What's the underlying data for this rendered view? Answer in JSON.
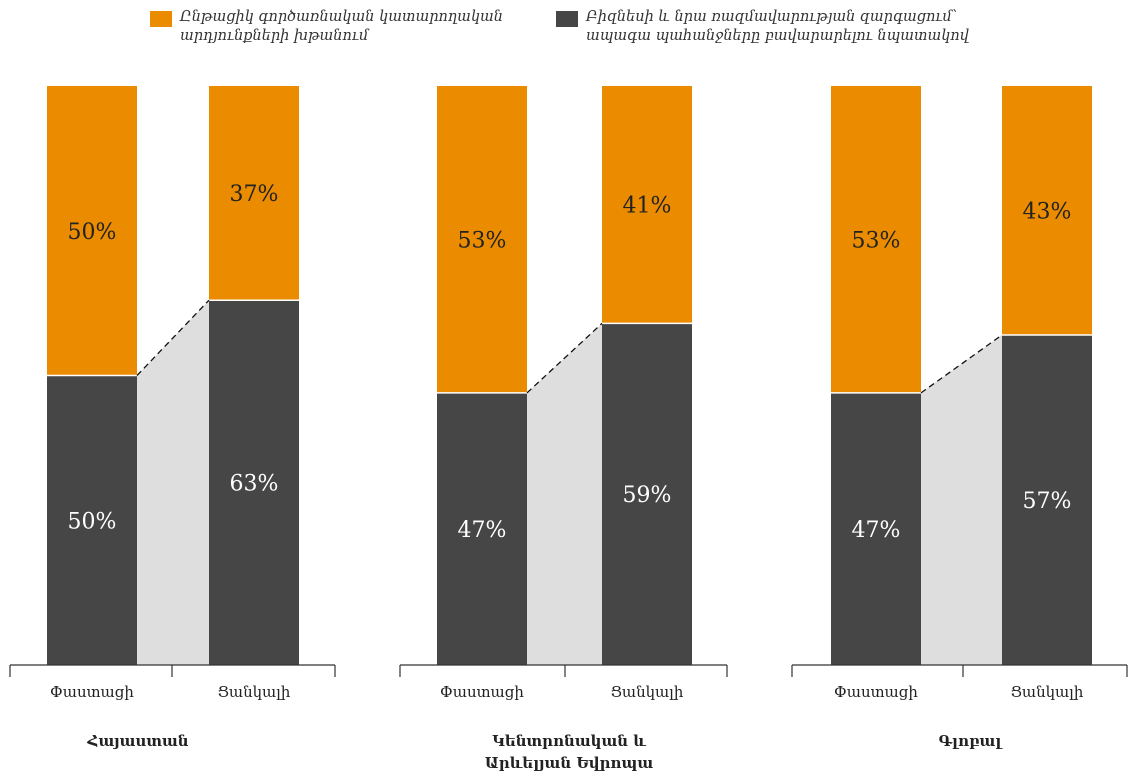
{
  "legend": {
    "items": [
      {
        "label": "Ընթացիկ գործառնական կատարողական\nարդյունքների խթանում",
        "color": "#eb8c00"
      },
      {
        "label": "Բիզնեսի և նրա ռազմավարության զարգացում՝\nապագա պահանջները բավարարելու նպատակով",
        "color": "#464646"
      }
    ]
  },
  "chart_data": [
    {
      "type": "bar",
      "stacked": true,
      "percent": true,
      "title": "Հայաստան",
      "categories": [
        "Փաստացի",
        "Ցանկալի"
      ],
      "series": [
        {
          "name": "Ընթացիկ գործառնական կատարողական արդյունքների խթանում",
          "color": "#eb8c00",
          "values": [
            50,
            37
          ]
        },
        {
          "name": "Բիզնեսի և նրա ռազմավարության զարգացում՝ ապագա պահանջները բավարարելու նպատակով",
          "color": "#464646",
          "values": [
            50,
            63
          ]
        }
      ],
      "ylim": [
        0,
        100
      ]
    },
    {
      "type": "bar",
      "stacked": true,
      "percent": true,
      "title": "Կենտրոնական և\nԱրևելյան Եվրոպա",
      "categories": [
        "Փաստացի",
        "Ցանկալի"
      ],
      "series": [
        {
          "name": "Ընթացիկ գործառնական կատարողական արդյունքների խթանում",
          "color": "#eb8c00",
          "values": [
            53,
            41
          ]
        },
        {
          "name": "Բիզնեսի և նրա ռազմավարության զարգացում՝ ապագա պահանջները բավարարելու նպատակով",
          "color": "#464646",
          "values": [
            47,
            59
          ]
        }
      ],
      "ylim": [
        0,
        100
      ]
    },
    {
      "type": "bar",
      "stacked": true,
      "percent": true,
      "title": "Գլոբալ",
      "categories": [
        "Փաստացի",
        "Ցանկալի"
      ],
      "series": [
        {
          "name": "Ընթացիկ գործառնական կատարողական արդյունքների խթանում",
          "color": "#eb8c00",
          "values": [
            53,
            43
          ]
        },
        {
          "name": "Բիզնեսի և նրա ռազմավարության զարգացում՝ ապագա պահանջները բավարարելու նպատակով",
          "color": "#464646",
          "values": [
            47,
            57
          ]
        }
      ],
      "ylim": [
        0,
        100
      ]
    }
  ],
  "colors": {
    "connector_fill": "#dedede",
    "axis": "#333333",
    "label_on_orange": "#222222",
    "label_on_dark": "#ffffff",
    "text": "#222222"
  }
}
